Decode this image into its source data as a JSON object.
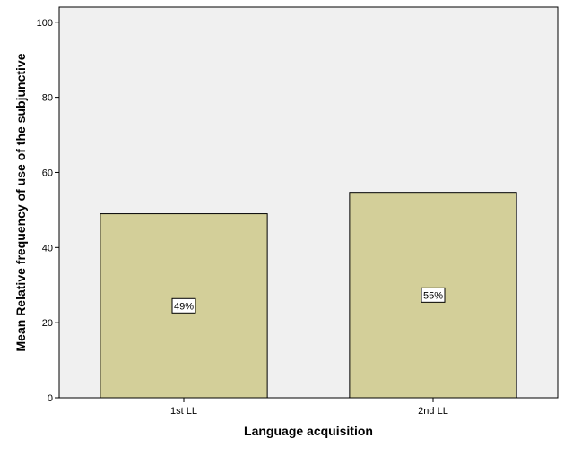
{
  "chart_data": {
    "type": "bar",
    "title": "",
    "xlabel": "Language acquisition",
    "ylabel": "Mean Relative frequency of use of the subjunctive",
    "categories": [
      "1st LL",
      "2nd LL"
    ],
    "values": [
      49,
      54.7
    ],
    "data_labels": [
      "49%",
      "55%"
    ],
    "ylim": [
      0,
      104
    ],
    "yticks": [
      "0",
      "20",
      "40",
      "60",
      "80",
      "100"
    ],
    "grid": false,
    "legend": "none",
    "colors": {
      "bar_fill": "#d3cf99",
      "bar_stroke": "#000000",
      "plot_background": "#f0f0f0",
      "label_background": "#ffffff"
    }
  }
}
